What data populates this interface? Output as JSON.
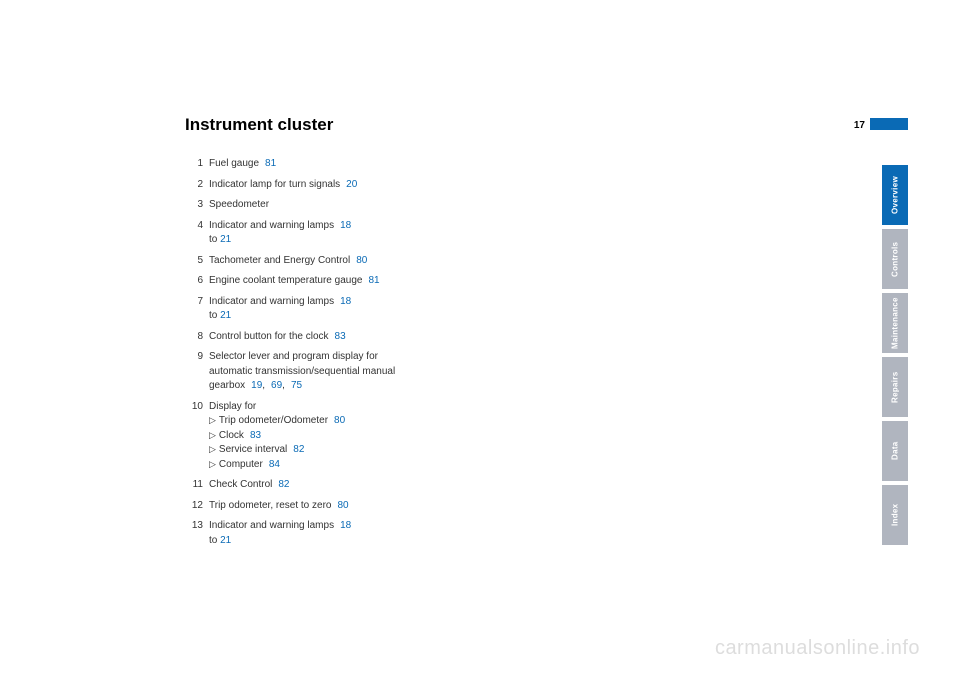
{
  "pageNumber": "17",
  "heading": "Instrument cluster",
  "items": [
    {
      "num": "1",
      "text": "Fuel gauge",
      "refs": [
        "81"
      ]
    },
    {
      "num": "2",
      "text": "Indicator lamp for turn signals",
      "refs": [
        "20"
      ]
    },
    {
      "num": "3",
      "text": "Speedometer",
      "refs": []
    },
    {
      "num": "4",
      "text": "Indicator and warning lamps",
      "refs": [
        "18"
      ],
      "toRef": "21"
    },
    {
      "num": "5",
      "text": "Tachometer and Energy Control",
      "refs": [
        "80"
      ]
    },
    {
      "num": "6",
      "text": "Engine coolant temperature gauge",
      "refs": [
        "81"
      ]
    },
    {
      "num": "7",
      "text": "Indicator and warning lamps",
      "refs": [
        "18"
      ],
      "toRef": "21"
    },
    {
      "num": "8",
      "text": "Control button for the clock",
      "refs": [
        "83"
      ]
    },
    {
      "num": "9",
      "text": "Selector lever and program display for automatic transmission/sequential manual gearbox",
      "refs": [
        "19",
        "69",
        "75"
      ]
    },
    {
      "num": "10",
      "text": "Display for",
      "subs": [
        {
          "label": "Trip odometer/Odometer",
          "ref": "80"
        },
        {
          "label": "Clock",
          "ref": "83"
        },
        {
          "label": "Service interval",
          "ref": "82"
        },
        {
          "label": "Computer",
          "ref": "84"
        }
      ]
    },
    {
      "num": "11",
      "text": "Check Control",
      "refs": [
        "82"
      ]
    },
    {
      "num": "12",
      "text": "Trip odometer, reset to zero",
      "refs": [
        "80"
      ]
    },
    {
      "num": "13",
      "text": "Indicator and warning lamps",
      "refs": [
        "18"
      ],
      "toRef": "21"
    }
  ],
  "tabs": [
    {
      "label": "Overview",
      "active": true
    },
    {
      "label": "Controls",
      "active": false
    },
    {
      "label": "Maintenance",
      "active": false
    },
    {
      "label": "Repairs",
      "active": false
    },
    {
      "label": "Data",
      "active": false
    },
    {
      "label": "Index",
      "active": false
    }
  ],
  "watermark": "carmanualsonline.info",
  "colors": {
    "linkBlue": "#0a6ab5",
    "tabInactive": "#b0b5bf",
    "textDark": "#333333",
    "watermarkGray": "#dddddd"
  }
}
